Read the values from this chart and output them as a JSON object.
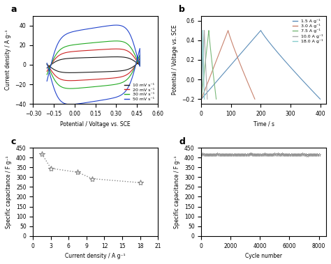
{
  "panel_a": {
    "title": "a",
    "xlabel": "Potential / Voltage vs. SCE",
    "ylabel": "Current density / A g⁻¹",
    "xlim": [
      -0.3,
      0.6
    ],
    "ylim": [
      -40,
      50
    ],
    "xticks": [
      -0.3,
      -0.15,
      0.0,
      0.15,
      0.3,
      0.45,
      0.6
    ],
    "yticks": [
      -40,
      -20,
      0,
      20,
      40
    ],
    "scan_rates": [
      10,
      20,
      30,
      50
    ],
    "colors": [
      "#1a1a1a",
      "#cc2222",
      "#22aa22",
      "#2244cc"
    ],
    "legend_labels": [
      "10 mV s⁻¹",
      "20 mV s⁻¹",
      "30 mV s⁻¹",
      "50 mV s⁻¹"
    ],
    "v_min": -0.2,
    "v_max": 0.47
  },
  "panel_b": {
    "title": "b",
    "xlabel": "Time / s",
    "ylabel": "Potential / Voltage vs. SCE",
    "xlim": [
      0,
      420
    ],
    "ylim": [
      -0.25,
      0.65
    ],
    "xticks": [
      0,
      100,
      200,
      300,
      400
    ],
    "yticks": [
      -0.2,
      0.0,
      0.2,
      0.4,
      0.6
    ],
    "current_densities": [
      1.5,
      3.0,
      7.5,
      10.0,
      18.0
    ],
    "colors": [
      "#5b8db8",
      "#c8826e",
      "#7ab87a",
      "#aaaaaa",
      "#88cccc"
    ],
    "legend_labels": [
      "1.5 A g⁻¹",
      "3.0 A g⁻¹",
      "7.5 A g⁻¹",
      "10.0 A g⁻¹",
      "18.0 A g⁻¹"
    ],
    "half_times": [
      200,
      90,
      25,
      10,
      5
    ],
    "v_low": -0.2,
    "v_high": 0.5
  },
  "panel_c": {
    "title": "c",
    "xlabel": "Current density / A g⁻¹",
    "ylabel": "Specific capacitance / F g⁻¹",
    "xlim": [
      0,
      21
    ],
    "ylim": [
      0,
      450
    ],
    "xticks": [
      0,
      3,
      6,
      9,
      12,
      15,
      18,
      21
    ],
    "yticks": [
      0,
      50,
      100,
      150,
      200,
      250,
      300,
      350,
      400,
      450
    ],
    "x_data": [
      1.5,
      3.0,
      7.5,
      10.0,
      18.0
    ],
    "y_data": [
      418,
      345,
      325,
      292,
      272
    ],
    "marker_color": "#888888",
    "line_color": "#888888"
  },
  "panel_d": {
    "title": "d",
    "xlabel": "Cycle number",
    "ylabel": "Specific capacitance / F g⁻¹",
    "xlim": [
      0,
      8500
    ],
    "ylim": [
      0,
      450
    ],
    "xticks": [
      0,
      2000,
      4000,
      6000,
      8000
    ],
    "yticks": [
      0,
      50,
      100,
      150,
      200,
      250,
      300,
      350,
      400,
      450
    ],
    "y_level": 415,
    "marker_color": "#888888",
    "line_color": "#888888"
  }
}
